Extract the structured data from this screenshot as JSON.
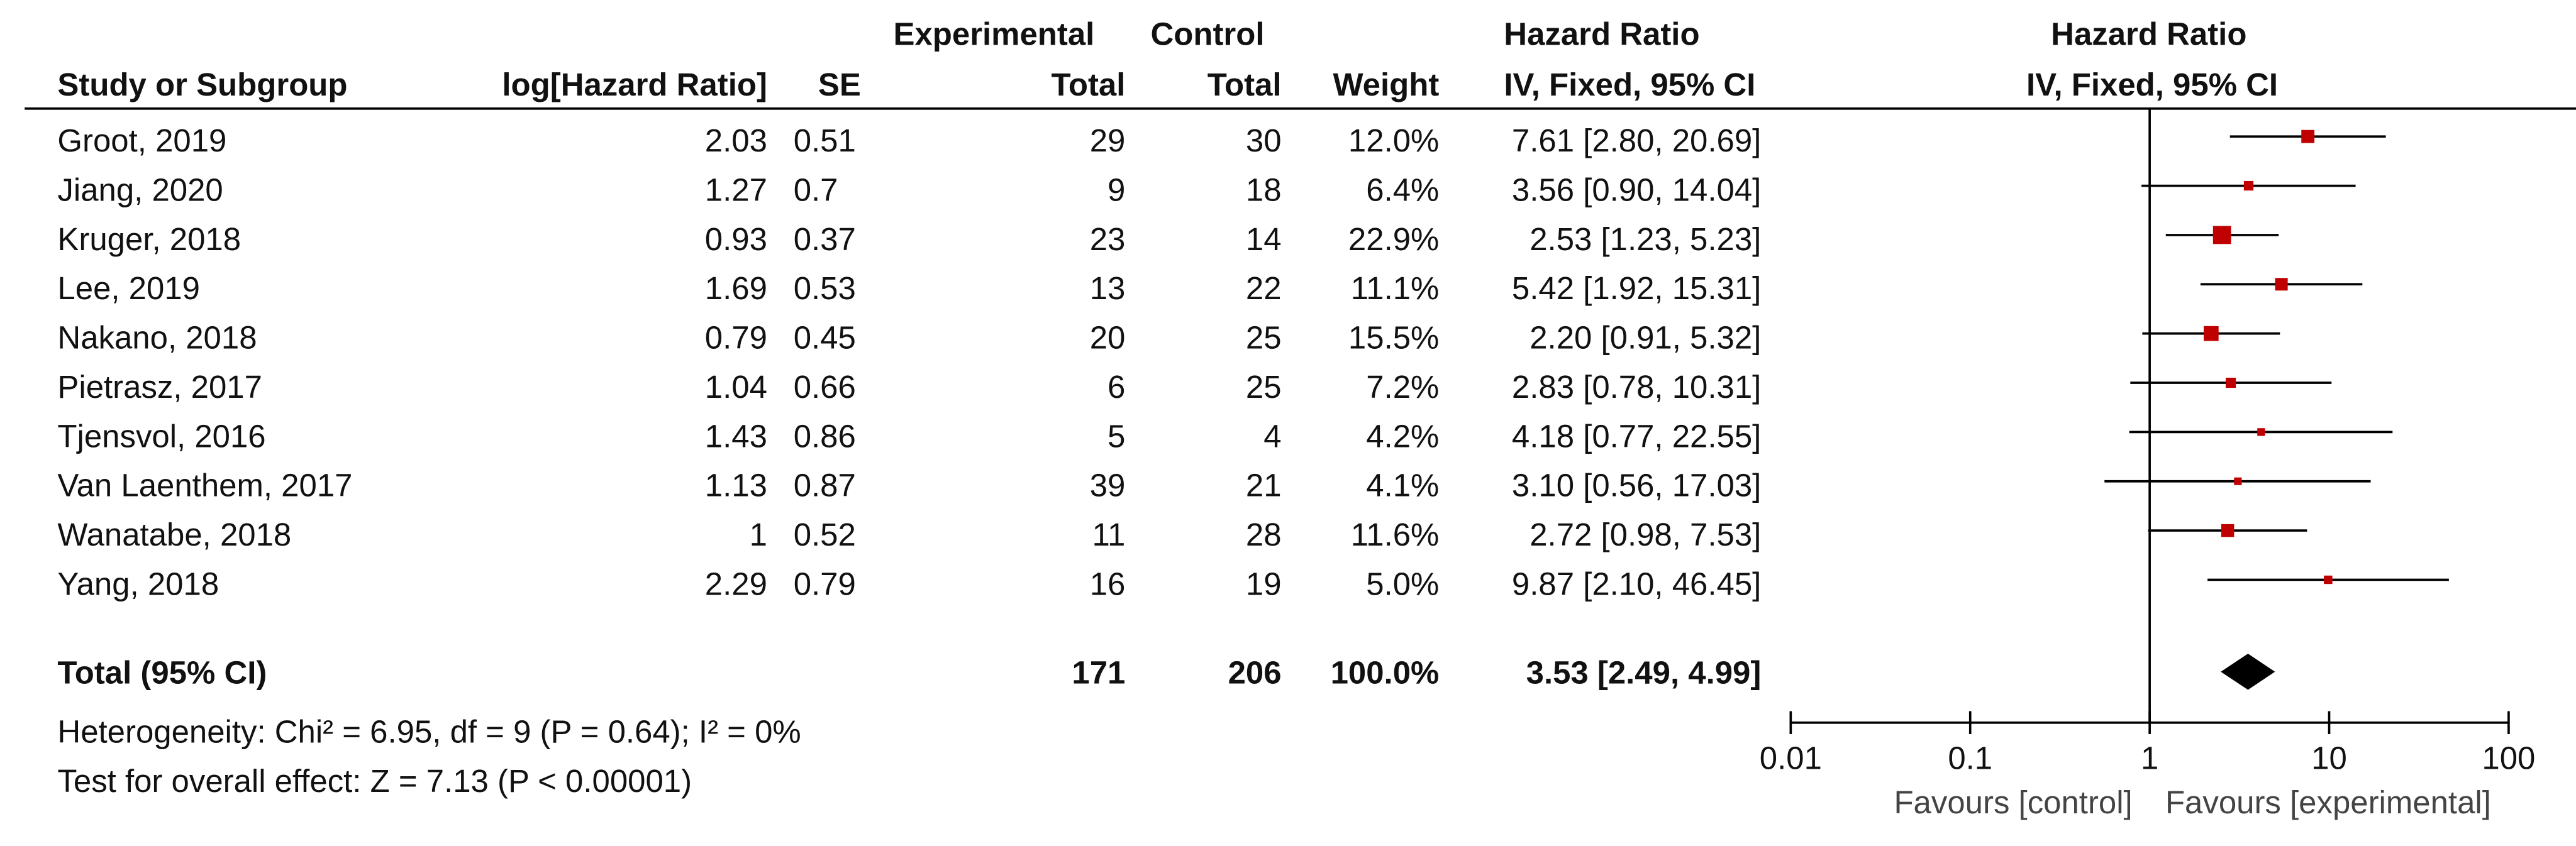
{
  "chart_data": {
    "type": "forest",
    "headers": {
      "experimental": "Experimental",
      "control": "Control",
      "hr_top": "Hazard Ratio",
      "plot_top": "Hazard Ratio",
      "study": "Study or Subgroup",
      "log_hr": "log[Hazard Ratio]",
      "se": "SE",
      "exp_total": "Total",
      "ctrl_total": "Total",
      "weight": "Weight",
      "hr_method": "IV, Fixed, 95% CI",
      "plot_method": "IV, Fixed, 95% CI"
    },
    "studies": [
      "Groot, 2019",
      "Jiang, 2020",
      "Kruger, 2018",
      "Lee, 2019",
      "Nakano, 2018",
      "Pietrasz, 2017",
      "Tjensvol, 2016",
      "Van Laenthem, 2017",
      "Wanatabe, 2018",
      "Yang, 2018"
    ],
    "log_hr": [
      2.03,
      1.27,
      0.93,
      1.69,
      0.79,
      1.04,
      1.43,
      1.13,
      1,
      2.29
    ],
    "se": [
      0.51,
      0.7,
      0.37,
      0.53,
      0.45,
      0.66,
      0.86,
      0.87,
      0.52,
      0.79
    ],
    "exp_total": [
      29,
      9,
      23,
      13,
      20,
      6,
      5,
      39,
      11,
      16
    ],
    "ctrl_total": [
      30,
      18,
      14,
      22,
      25,
      25,
      4,
      21,
      28,
      19
    ],
    "weight": [
      12.0,
      6.4,
      22.9,
      11.1,
      15.5,
      7.2,
      4.2,
      4.1,
      11.6,
      5.0
    ],
    "weight_labels": [
      "12.0%",
      "6.4%",
      "22.9%",
      "11.1%",
      "15.5%",
      "7.2%",
      "4.2%",
      "4.1%",
      "11.6%",
      "5.0%"
    ],
    "hr": [
      7.61,
      3.56,
      2.53,
      5.42,
      2.2,
      2.83,
      4.18,
      3.1,
      2.72,
      9.87
    ],
    "ci_lower": [
      2.8,
      0.9,
      1.23,
      1.92,
      0.91,
      0.78,
      0.77,
      0.56,
      0.98,
      2.1
    ],
    "ci_upper": [
      20.69,
      14.04,
      5.23,
      15.31,
      5.32,
      10.31,
      22.55,
      17.03,
      7.53,
      46.45
    ],
    "ci_labels": [
      "7.61 [2.80, 20.69]",
      "3.56 [0.90, 14.04]",
      "2.53 [1.23, 5.23]",
      "5.42 [1.92, 15.31]",
      "2.20 [0.91, 5.32]",
      "2.83 [0.78, 10.31]",
      "4.18 [0.77, 22.55]",
      "3.10 [0.56, 17.03]",
      "2.72 [0.98, 7.53]",
      "9.87 [2.10, 46.45]"
    ],
    "total": {
      "label": "Total (95% CI)",
      "exp_total": 171,
      "ctrl_total": 206,
      "weight": 100.0,
      "weight_label": "100.0%",
      "hr": 3.53,
      "ci_lower": 2.49,
      "ci_upper": 4.99,
      "ci_label": "3.53 [2.49, 4.99]"
    },
    "heterogeneity": "Heterogeneity: Chi² = 6.95, df = 9 (P = 0.64); I² = 0%",
    "overall_effect": "Test for overall effect: Z = 7.13 (P < 0.00001)",
    "xscale": "log",
    "xlim": [
      0.01,
      100
    ],
    "xticks": [
      0.01,
      0.1,
      1,
      10,
      100
    ],
    "favours_left": "Favours [control]",
    "favours_right": "Favours [experimental]",
    "color": "#c00000"
  }
}
